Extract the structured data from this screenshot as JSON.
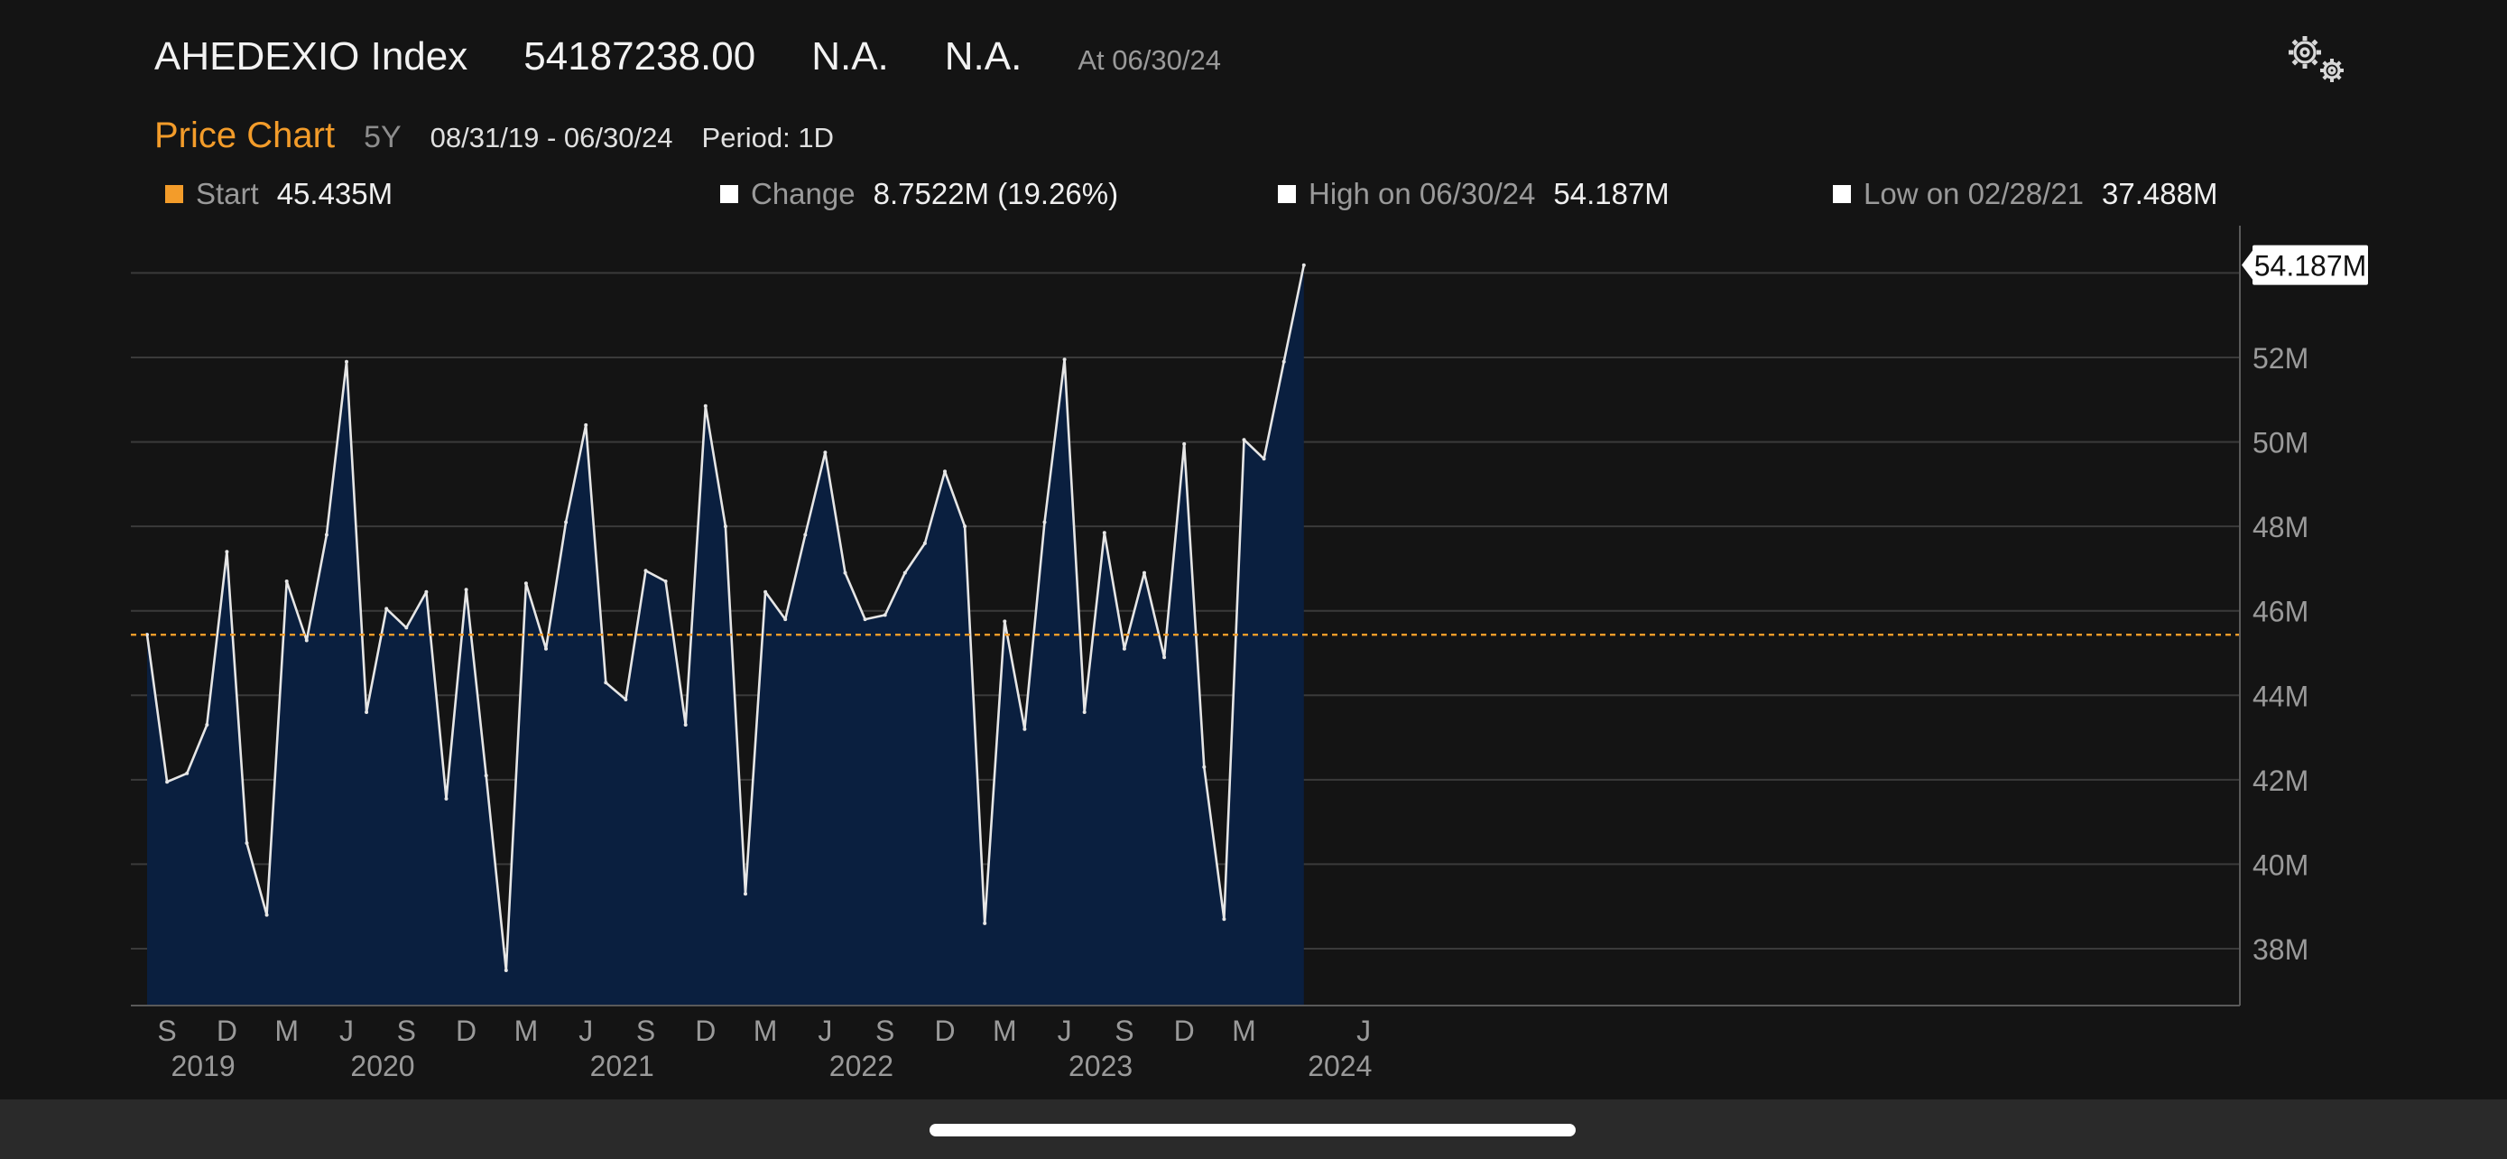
{
  "header": {
    "ticker": "AHEDEXIO Index",
    "last_price": "54187238.00",
    "field1": "N.A.",
    "field2": "N.A.",
    "as_of": "At 06/30/24"
  },
  "subheader": {
    "title": "Price Chart",
    "range": "5Y",
    "dates": "08/31/19 - 06/30/24",
    "period": "Period: 1D"
  },
  "stats": [
    {
      "label": "Start",
      "value": "45.435M",
      "color": "#f39c2a"
    },
    {
      "label": "Change",
      "value": "8.7522M (19.26%)",
      "color": "#ffffff"
    },
    {
      "label": "High on 06/30/24",
      "value": "54.187M",
      "color": "#ffffff"
    },
    {
      "label": "Low on 02/28/21",
      "value": "37.488M",
      "color": "#ffffff"
    }
  ],
  "icons": {
    "settings": "gears-icon"
  },
  "colors": {
    "accent": "#f39c2a",
    "area_fill": "#0a1f3f",
    "line": "#e6e6e6",
    "background": "#141414"
  },
  "chart_data": {
    "type": "area",
    "x": [
      "2019-08",
      "2019-09",
      "2019-10",
      "2019-11",
      "2019-12",
      "2020-01",
      "2020-02",
      "2020-03",
      "2020-04",
      "2020-05",
      "2020-06",
      "2020-07",
      "2020-08",
      "2020-09",
      "2020-10",
      "2020-11",
      "2020-12",
      "2021-01",
      "2021-02",
      "2021-03",
      "2021-04",
      "2021-05",
      "2021-06",
      "2021-07",
      "2021-08",
      "2021-09",
      "2021-10",
      "2021-11",
      "2021-12",
      "2022-01",
      "2022-02",
      "2022-03",
      "2022-04",
      "2022-05",
      "2022-06",
      "2022-07",
      "2022-08",
      "2022-09",
      "2022-10",
      "2022-11",
      "2022-12",
      "2023-01",
      "2023-02",
      "2023-03",
      "2023-04",
      "2023-05",
      "2023-06",
      "2023-07",
      "2023-08",
      "2023-09",
      "2023-10",
      "2023-11",
      "2023-12",
      "2024-01",
      "2024-02",
      "2024-03",
      "2024-04",
      "2024-05",
      "2024-06"
    ],
    "series": [
      {
        "values": [
          45.435,
          41.95,
          42.15,
          43.3,
          47.4,
          40.5,
          38.8,
          46.7,
          45.3,
          47.8,
          51.9,
          43.6,
          46.05,
          45.6,
          46.45,
          41.55,
          46.5,
          42.1,
          37.488,
          46.65,
          45.1,
          48.1,
          50.4,
          44.3,
          43.9,
          46.95,
          46.7,
          43.3,
          50.85,
          48.0,
          39.3,
          46.45,
          45.8,
          47.8,
          49.75,
          46.9,
          45.8,
          45.9,
          46.9,
          47.6,
          49.3,
          48.0,
          38.6,
          45.75,
          43.2,
          48.1,
          51.95,
          43.6,
          47.85,
          45.1,
          46.9,
          44.9,
          49.95,
          42.3,
          38.7,
          50.05,
          49.6,
          51.9,
          54.187
        ]
      }
    ],
    "start_reference": 45.435,
    "last_value_label": "54.187M",
    "ylim": [
      36.6,
      55
    ],
    "y_ticks": [
      38,
      40,
      42,
      44,
      46,
      48,
      50,
      52
    ],
    "y_tick_labels": [
      "38M",
      "40M",
      "42M",
      "44M",
      "46M",
      "48M",
      "50M",
      "52M"
    ],
    "x_ticks": [
      {
        "date": "2019-09",
        "label": "S",
        "year": "2019"
      },
      {
        "date": "2019-12",
        "label": "D"
      },
      {
        "date": "2020-03",
        "label": "M"
      },
      {
        "date": "2020-06",
        "label": "J",
        "year": "2020"
      },
      {
        "date": "2020-09",
        "label": "S"
      },
      {
        "date": "2020-12",
        "label": "D"
      },
      {
        "date": "2021-03",
        "label": "M"
      },
      {
        "date": "2021-06",
        "label": "J",
        "year": "2021"
      },
      {
        "date": "2021-09",
        "label": "S"
      },
      {
        "date": "2021-12",
        "label": "D"
      },
      {
        "date": "2022-03",
        "label": "M"
      },
      {
        "date": "2022-06",
        "label": "J",
        "year": "2022"
      },
      {
        "date": "2022-09",
        "label": "S"
      },
      {
        "date": "2022-12",
        "label": "D"
      },
      {
        "date": "2023-03",
        "label": "M"
      },
      {
        "date": "2023-06",
        "label": "J",
        "year": "2023"
      },
      {
        "date": "2023-09",
        "label": "S"
      },
      {
        "date": "2023-12",
        "label": "D"
      },
      {
        "date": "2024-03",
        "label": "M"
      },
      {
        "date": "2024-06",
        "label": "",
        "year": "2024"
      },
      {
        "date": "2024-09",
        "label": "J"
      }
    ],
    "grid": true,
    "legend": "top"
  }
}
